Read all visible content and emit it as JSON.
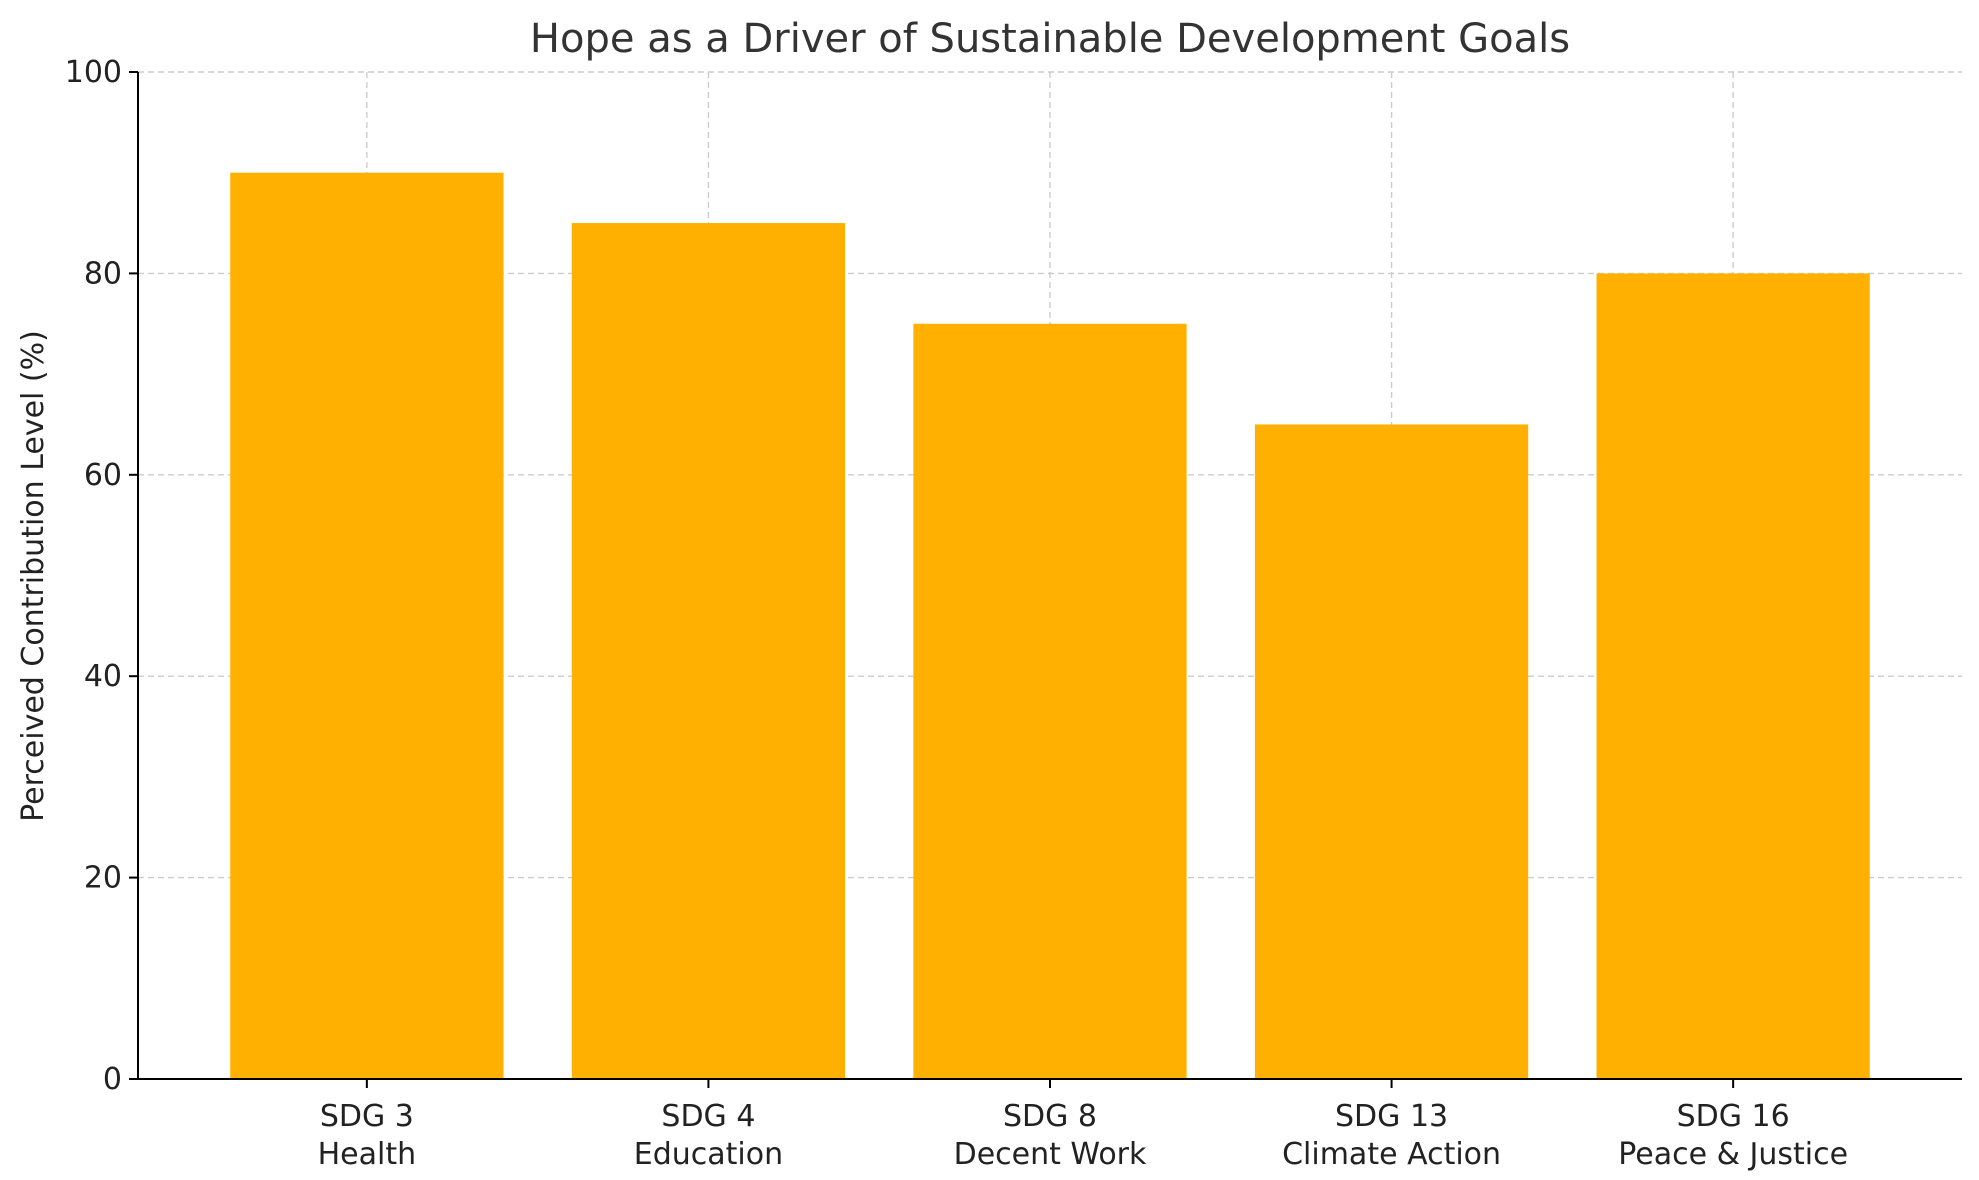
{
  "chart_data": {
    "type": "bar",
    "title": "Hope as a Driver of Sustainable Development Goals",
    "xlabel": "",
    "ylabel": "Perceived Contribution Level (%)",
    "ylim": [
      0,
      100
    ],
    "yticks": [
      0,
      20,
      40,
      60,
      80,
      100
    ],
    "categories": [
      [
        "SDG 3",
        "Health"
      ],
      [
        "SDG 4",
        "Education"
      ],
      [
        "SDG 8",
        "Decent Work"
      ],
      [
        "SDG 13",
        "Climate Action"
      ],
      [
        "SDG 16",
        "Peace & Justice"
      ]
    ],
    "values": [
      90,
      85,
      75,
      65,
      80
    ],
    "bar_color": "#FFB000",
    "grid": true,
    "legend": "none"
  }
}
